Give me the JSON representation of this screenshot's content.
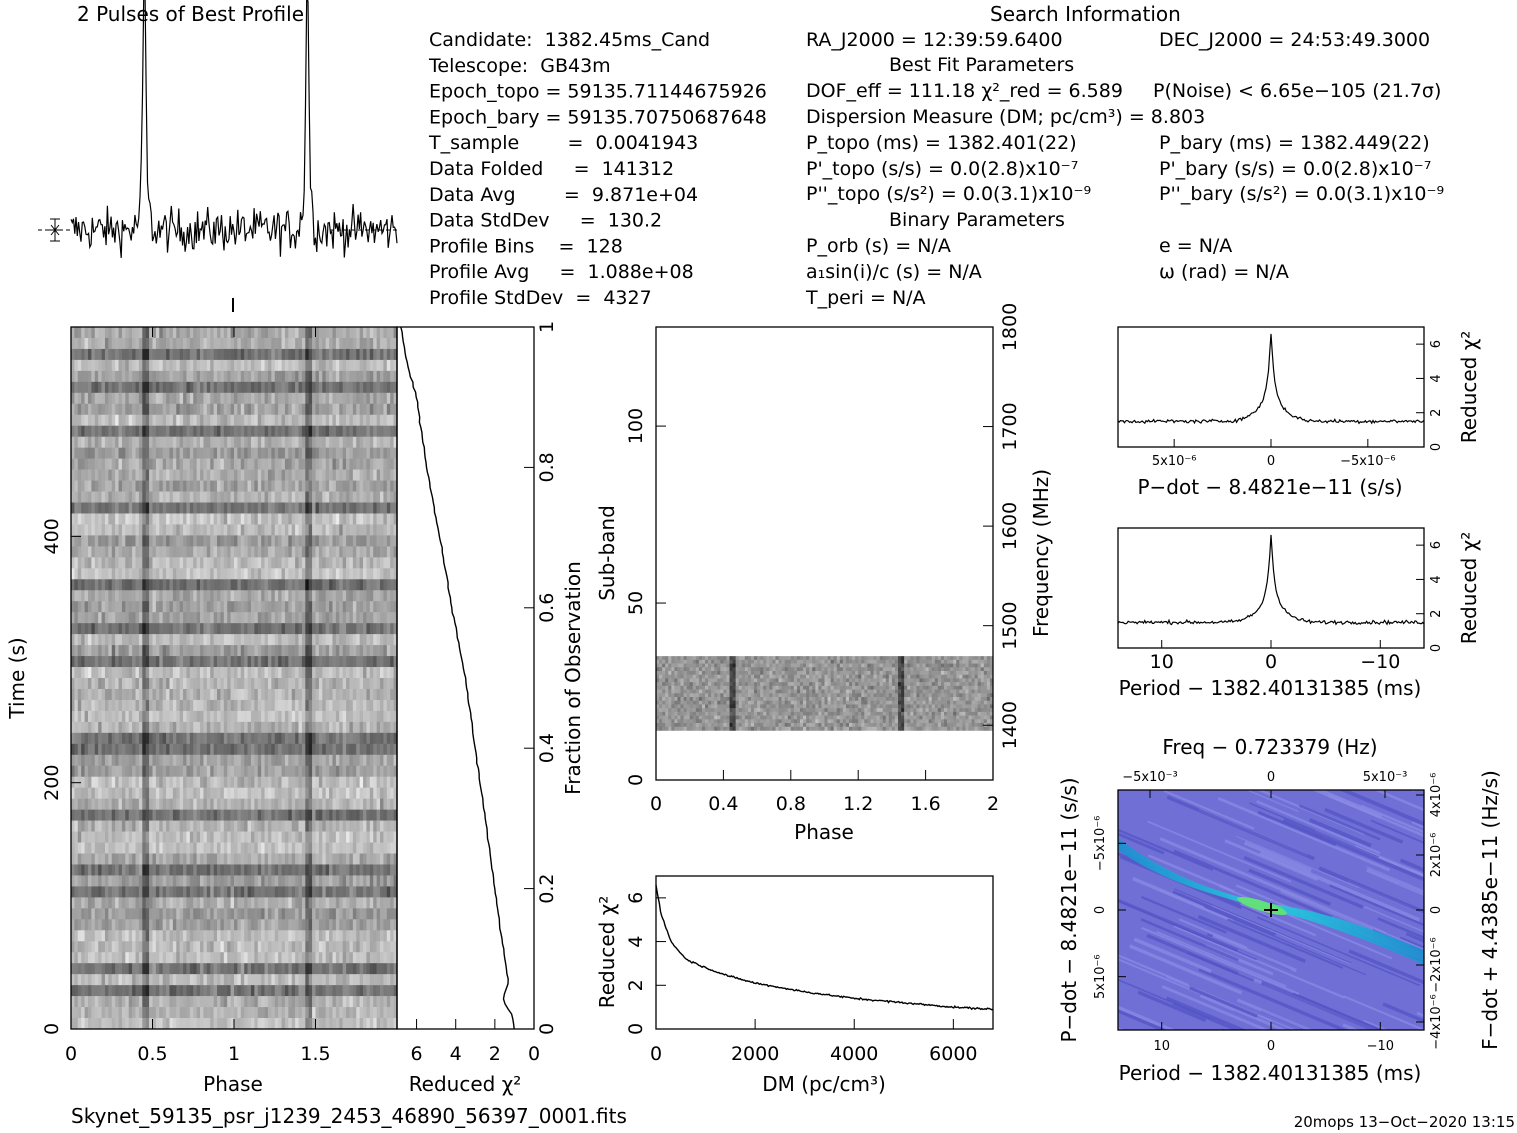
{
  "titles": {
    "profile": "2 Pulses of Best Profile",
    "search": "Search Information",
    "best_fit": "Best Fit Parameters",
    "binary": "Binary Parameters"
  },
  "info_left": [
    "Candidate:  1382.45ms_Cand",
    "Telescope:  GB43m",
    "Epoch_topo = 59135.71144675926",
    "Epoch_bary = 59135.70750687648",
    "T_sample        =  0.0041943",
    "Data Folded     =  141312",
    "Data Avg        =  9.871e+04",
    "Data StdDev     =  130.2",
    "Profile Bins    =  128",
    "Profile Avg     =  1.088e+08",
    "Profile StdDev  =  4327"
  ],
  "info_mid": [
    "RA_J2000 = 12:39:59.6400",
    "DOF_eff = 111.18  χ²_red = 6.589",
    "Dispersion Measure (DM; pc/cm³) = 8.803",
    "P_topo (ms) =  1382.401(22)",
    "P'_topo (s/s) = 0.0(2.8)x10⁻⁷",
    "P''_topo (s/s²) = 0.0(3.1)x10⁻⁹",
    "P_orb (s) = N/A",
    "a₁sin(i)/c (s) = N/A",
    "T_peri = N/A"
  ],
  "info_right": [
    "DEC_J2000 = 24:53:49.3000",
    "P(Noise) < 6.65e−105  (21.7σ)",
    "P_bary (ms) =  1382.449(22)",
    "P'_bary (s/s) = 0.0(2.8)x10⁻⁷",
    "P''_bary (s/s²) = 0.0(3.1)x10⁻⁹",
    "e = N/A",
    "ω (rad) = N/A"
  ],
  "footer": {
    "filename": "Skynet_59135_psr_j1239_2453_46890_56397_0001.fits",
    "stamp": "20mops 13−Oct−2020 13:15"
  },
  "chart_data": [
    {
      "id": "time-phase",
      "type": "heatmap",
      "xlabel": "Phase",
      "ylabel": "Time (s)",
      "x_ticks": [
        "0",
        "0.5",
        "1",
        "1.5"
      ],
      "xlim": [
        0,
        2
      ],
      "y_ticks": [
        "0",
        "200",
        "400"
      ],
      "ylim": [
        0,
        570
      ],
      "pulse_phases": [
        0.45,
        1.45
      ]
    },
    {
      "id": "time-chi2",
      "type": "line",
      "xlabel": "Reduced χ²",
      "ylabel": "Fraction of Observation",
      "x_ticks": [
        "6",
        "4",
        "2",
        "0"
      ],
      "xlim": [
        7,
        0
      ],
      "y_ticks": [
        "0",
        "0.2",
        "0.4",
        "0.6",
        "0.8",
        "1"
      ],
      "ylim": [
        0,
        1
      ],
      "fraction": [
        0,
        0.02,
        0.04,
        0.07,
        0.1,
        0.2,
        0.3,
        0.4,
        0.5,
        0.6,
        0.7,
        0.8,
        0.9,
        0.95,
        1.0
      ],
      "chi2": [
        1.0,
        1.1,
        1.6,
        1.3,
        1.5,
        2.0,
        2.5,
        3.0,
        3.5,
        4.2,
        4.8,
        5.5,
        6.0,
        6.5,
        6.8
      ]
    },
    {
      "id": "subband-phase",
      "type": "heatmap",
      "xlabel": "Phase",
      "ylabel": "Sub-band",
      "ylabel2": "Frequency (MHz)",
      "x_ticks": [
        "0",
        "0.4",
        "0.8",
        "1.2",
        "1.6",
        "2"
      ],
      "xlim": [
        0,
        2
      ],
      "y_ticks": [
        "0",
        "50",
        "100"
      ],
      "ylim": [
        0,
        128
      ],
      "y2_ticks": [
        "1400",
        "1500",
        "1600",
        "1700",
        "1800"
      ],
      "y2lim": [
        1345,
        1800
      ],
      "band_range": [
        14,
        35
      ],
      "pulse_phases": [
        0.46,
        1.46
      ]
    },
    {
      "id": "dm-chi2",
      "type": "line",
      "xlabel": "DM (pc/cm³)",
      "ylabel": "Reduced χ²",
      "x_ticks": [
        "0",
        "2000",
        "4000",
        "6000"
      ],
      "xlim": [
        0,
        6800
      ],
      "y_ticks": [
        "0",
        "2",
        "4",
        "6"
      ],
      "ylim": [
        0,
        7
      ],
      "dm": [
        0,
        100,
        300,
        600,
        1000,
        1500,
        2000,
        3000,
        4000,
        5000,
        6000,
        6800
      ],
      "chi2": [
        6.6,
        5.3,
        4.0,
        3.2,
        2.8,
        2.4,
        2.1,
        1.7,
        1.4,
        1.2,
        1.0,
        0.9
      ]
    },
    {
      "id": "pdot-chi2",
      "type": "line",
      "xlabel": "P−dot − 8.4821e−11 (s/s)",
      "ylabel": "Reduced χ²",
      "x_ticks": [
        "5x10⁻⁶",
        "0",
        "−5x10⁻⁶"
      ],
      "xlim": [
        7.9e-06,
        -7.9e-06
      ],
      "y_ticks": [
        "0",
        "2",
        "4",
        "6"
      ],
      "ylim": [
        0,
        7
      ],
      "peak_x": 0,
      "peak_chi2": 6.6,
      "baseline_chi2": 1.5
    },
    {
      "id": "period-chi2",
      "type": "line",
      "xlabel": "Period − 1382.40131385 (ms)",
      "ylabel": "Reduced χ²",
      "x_ticks": [
        "10",
        "0",
        "−10"
      ],
      "xlim": [
        14,
        -14
      ],
      "y_ticks": [
        "0",
        "2",
        "4",
        "6"
      ],
      "ylim": [
        0,
        7
      ],
      "peak_x": 0,
      "peak_chi2": 6.6,
      "baseline_chi2": 1.5
    },
    {
      "id": "pp-plane",
      "type": "heatmap",
      "title": "Freq − 0.723379 (Hz)",
      "xlabel": "Period − 1382.40131385 (ms)",
      "ylabel": "P−dot − 8.4821e−11 (s/s)",
      "ylabel2": "F−dot + 4.4385e−11 (Hz/s)",
      "x_ticks": [
        "10",
        "0",
        "−10"
      ],
      "x2_ticks": [
        "−5x10⁻³",
        "0",
        "5x10⁻³"
      ],
      "y_ticks": [
        "−5x10⁻⁶",
        "0",
        "5x10⁻⁶"
      ],
      "y2_ticks": [
        "4x10⁻⁶",
        "2x10⁻⁶",
        "0",
        "−2x10⁻⁶",
        "−4x10⁻⁶"
      ],
      "xlim": [
        14,
        -14
      ],
      "ylim": [
        -9e-06,
        9e-06
      ],
      "best": [
        0,
        0
      ],
      "colors": {
        "bg": "#6f6fd6",
        "ridge": "#1fb8d8",
        "peak": "#56e07a"
      }
    }
  ],
  "profile_data": {
    "type": "line",
    "pulse_phases": [
      0.45,
      1.45
    ],
    "peak_height": 1.0,
    "noise_level": 0.12
  }
}
